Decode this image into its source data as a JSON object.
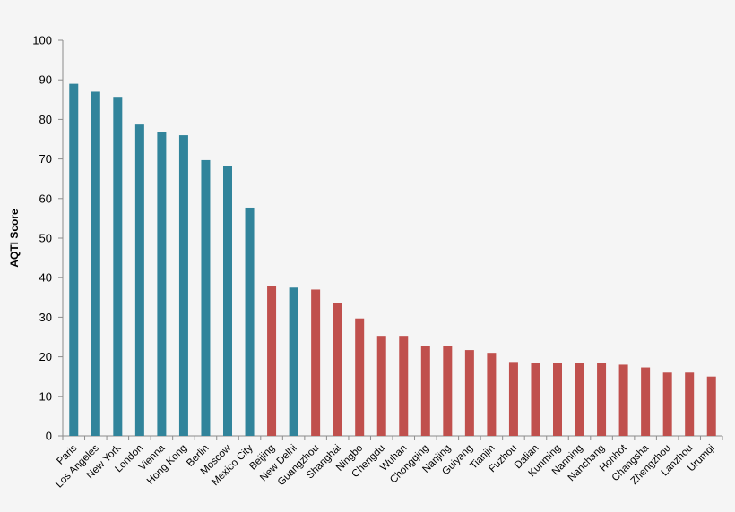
{
  "chart_data": {
    "type": "bar",
    "title": "",
    "xlabel": "",
    "ylabel": "AQTI Score",
    "ylim": [
      0,
      100
    ],
    "yticks": [
      0,
      10,
      20,
      30,
      40,
      50,
      60,
      70,
      80,
      90,
      100
    ],
    "grid": false,
    "categories": [
      "Paris",
      "Los Angeles",
      "New York",
      "London",
      "Vienna",
      "Hong Kong",
      "Berlin",
      "Moscow",
      "Mexico City",
      "Beijing",
      "New Delhi",
      "Guangzhou",
      "Shanghai",
      "Ningbo",
      "Chengdu",
      "Wuhan",
      "Chongqing",
      "Nanjing",
      "Guiyang",
      "Tianjin",
      "Fuzhou",
      "Dalian",
      "Kunming",
      "Nanning",
      "Nanchang",
      "Hohhot",
      "Changsha",
      "Zhengzhou",
      "Lanzhou",
      "Urumqi"
    ],
    "values": [
      89,
      87,
      85.7,
      78.7,
      76.7,
      76,
      69.7,
      68.3,
      57.7,
      38,
      37.5,
      37,
      33.5,
      29.7,
      25.3,
      25.3,
      22.7,
      22.7,
      21.7,
      21,
      18.7,
      18.5,
      18.5,
      18.5,
      18.5,
      18,
      17.3,
      16,
      16,
      15
    ],
    "bar_colors": [
      "#31849b",
      "#31849b",
      "#31849b",
      "#31849b",
      "#31849b",
      "#31849b",
      "#31849b",
      "#31849b",
      "#31849b",
      "#c0504d",
      "#31849b",
      "#c0504d",
      "#c0504d",
      "#c0504d",
      "#c0504d",
      "#c0504d",
      "#c0504d",
      "#c0504d",
      "#c0504d",
      "#c0504d",
      "#c0504d",
      "#c0504d",
      "#c0504d",
      "#c0504d",
      "#c0504d",
      "#c0504d",
      "#c0504d",
      "#c0504d",
      "#c0504d",
      "#c0504d"
    ],
    "axis_color": "#8c8c8c"
  }
}
